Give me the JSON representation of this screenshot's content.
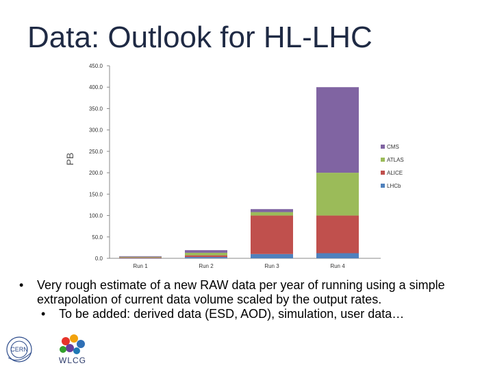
{
  "slide": {
    "title": "Data: Outlook for HL-LHC",
    "bullets": [
      "Very rough estimate of a new RAW data per year of running using a simple extrapolation of current data volume scaled by the output rates."
    ],
    "sub_bullets": [
      "To be added: derived data (ESD, AOD), simulation, user data…"
    ],
    "logos": {
      "cern": "CERN",
      "wlcg": "WLCG"
    }
  },
  "chart_data": {
    "type": "bar",
    "stacked": true,
    "categories": [
      "Run 1",
      "Run 2",
      "Run 3",
      "Run 4"
    ],
    "ylabel": "PB",
    "ylim": [
      0,
      450
    ],
    "yticks": [
      "0.0",
      "50.0",
      "100.0",
      "150.0",
      "200.0",
      "250.0",
      "300.0",
      "350.0",
      "400.0",
      "450.0"
    ],
    "legend_position": "right",
    "grid": false,
    "series": [
      {
        "name": "LHCb",
        "color": "#4f81bd",
        "values": [
          0.5,
          3,
          10,
          12
        ]
      },
      {
        "name": "ALICE",
        "color": "#c0504d",
        "values": [
          1.5,
          4,
          90,
          88
        ]
      },
      {
        "name": "ATLAS",
        "color": "#9bbb59",
        "values": [
          1.5,
          6,
          8,
          100
        ]
      },
      {
        "name": "CMS",
        "color": "#8064a2",
        "values": [
          1.5,
          6,
          7,
          200
        ]
      }
    ],
    "legend_order": [
      "CMS",
      "ATLAS",
      "ALICE",
      "LHCb"
    ]
  }
}
